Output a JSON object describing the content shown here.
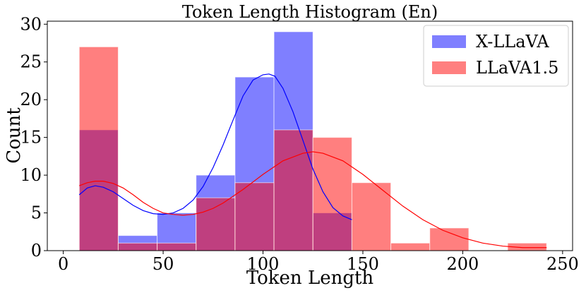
{
  "chart_data": {
    "type": "bar",
    "title": "Token Length Histogram (En)",
    "xlabel": "Token Length",
    "ylabel": "Count",
    "xlim": [
      -8,
      255
    ],
    "ylim": [
      0,
      30.4
    ],
    "xticks": [
      0,
      50,
      100,
      150,
      200,
      250
    ],
    "yticks": [
      0,
      5,
      10,
      15,
      20,
      25,
      30
    ],
    "grid": false,
    "legend_position": "top-right",
    "series": [
      {
        "name": "X-LLaVA",
        "color": "#0000ff",
        "opacity": 0.5,
        "bins": [
          {
            "x0": 8,
            "x1": 27.5,
            "count": 16
          },
          {
            "x0": 27.5,
            "x1": 47,
            "count": 2
          },
          {
            "x0": 47,
            "x1": 66.5,
            "count": 5
          },
          {
            "x0": 66.5,
            "x1": 86,
            "count": 10
          },
          {
            "x0": 86,
            "x1": 105.5,
            "count": 23
          },
          {
            "x0": 105.5,
            "x1": 125,
            "count": 29
          },
          {
            "x0": 125,
            "x1": 144.5,
            "count": 5
          }
        ],
        "kde": {
          "x": [
            8,
            12,
            16,
            20,
            25,
            30,
            35,
            40,
            45,
            50,
            55,
            60,
            65,
            70,
            75,
            80,
            85,
            90,
            95,
            100,
            103,
            106,
            110,
            115,
            120,
            125,
            130,
            135,
            140,
            144.5
          ],
          "y": [
            7.4,
            8.3,
            8.6,
            8.4,
            7.8,
            6.9,
            6.0,
            5.3,
            4.9,
            4.8,
            5.0,
            5.6,
            6.7,
            8.5,
            11.0,
            14.0,
            17.3,
            20.5,
            22.6,
            23.3,
            23.4,
            23.1,
            21.5,
            18.4,
            14.6,
            10.8,
            7.8,
            5.7,
            4.6,
            4.1
          ]
        }
      },
      {
        "name": "LLaVA1.5",
        "color": "#ff0000",
        "opacity": 0.5,
        "bins": [
          {
            "x0": 8,
            "x1": 27.5,
            "count": 27
          },
          {
            "x0": 27.5,
            "x1": 47,
            "count": 1
          },
          {
            "x0": 47,
            "x1": 66.5,
            "count": 1
          },
          {
            "x0": 66.5,
            "x1": 86,
            "count": 7
          },
          {
            "x0": 86,
            "x1": 105.5,
            "count": 9
          },
          {
            "x0": 105.5,
            "x1": 125,
            "count": 16
          },
          {
            "x0": 125,
            "x1": 144.5,
            "count": 15
          },
          {
            "x0": 144.5,
            "x1": 164,
            "count": 9
          },
          {
            "x0": 164,
            "x1": 183.5,
            "count": 1
          },
          {
            "x0": 183.5,
            "x1": 203,
            "count": 3
          },
          {
            "x0": 203,
            "x1": 222.5,
            "count": 0
          },
          {
            "x0": 222.5,
            "x1": 242,
            "count": 1
          }
        ],
        "kde": {
          "x": [
            8,
            12,
            16,
            20,
            25,
            30,
            35,
            40,
            45,
            50,
            55,
            60,
            65,
            70,
            75,
            80,
            90,
            100,
            110,
            120,
            125,
            130,
            140,
            150,
            160,
            170,
            180,
            190,
            200,
            210,
            220,
            230,
            242
          ],
          "y": [
            8.6,
            9.0,
            9.2,
            9.2,
            8.9,
            8.3,
            7.4,
            6.4,
            5.6,
            5.0,
            4.8,
            4.7,
            4.8,
            5.1,
            5.6,
            6.3,
            8.1,
            10.1,
            11.9,
            12.9,
            13.1,
            12.9,
            11.9,
            10.1,
            8.0,
            5.9,
            4.1,
            2.7,
            1.7,
            1.0,
            0.6,
            0.4,
            0.4
          ]
        }
      }
    ]
  }
}
